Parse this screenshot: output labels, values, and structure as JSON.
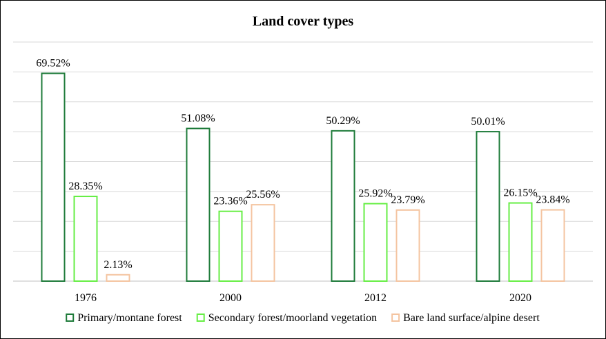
{
  "chart_data": {
    "type": "bar",
    "title": "Land cover types",
    "xlabel": "",
    "ylabel": "",
    "categories": [
      "1976",
      "2000",
      "2012",
      "2020"
    ],
    "series": [
      {
        "name": "Primary/montane forest",
        "values": [
          69.52,
          51.08,
          50.29,
          50.01
        ],
        "labels": [
          "69.52%",
          "51.08%",
          "50.29%",
          "50.01%"
        ]
      },
      {
        "name": "Secondary forest/moorland vegetation",
        "values": [
          28.35,
          23.36,
          25.92,
          26.15
        ],
        "labels": [
          "28.35%",
          "23.36%",
          "25.92%",
          "26.15%"
        ]
      },
      {
        "name": "Bare land surface/alpine desert",
        "values": [
          2.13,
          25.56,
          23.79,
          23.84
        ],
        "labels": [
          "2.13%",
          "25.56%",
          "23.79%",
          "23.84%"
        ]
      }
    ],
    "ylim": [
      0,
      80
    ],
    "y_axis_labels_visible": false,
    "grid": true,
    "legend_position": "bottom",
    "colors": [
      "#1e7b3a",
      "#66ee44",
      "#f4c4a0"
    ]
  }
}
